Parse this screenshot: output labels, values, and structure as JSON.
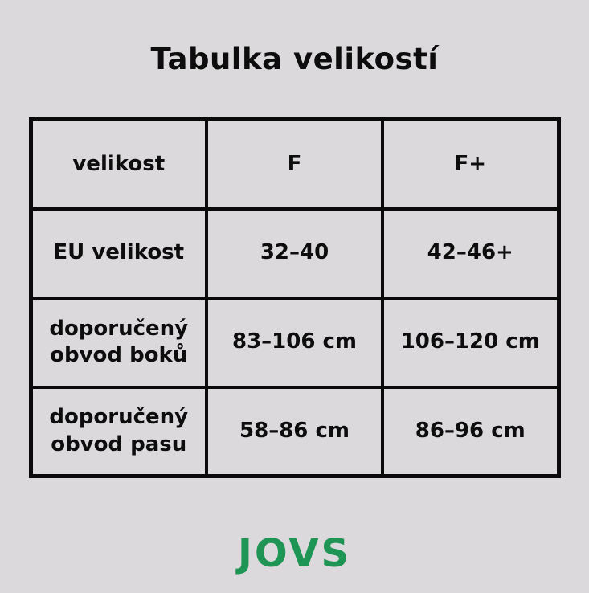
{
  "page": {
    "title": "Tabulka velikostí",
    "brand": "JOVS"
  },
  "theme": {
    "background_color": "#dbd9dc",
    "text_color": "#0d0d0d",
    "border_color": "#0a0a0a",
    "brand_green": "#1e9554"
  },
  "chart_data": {
    "type": "table",
    "title": "Tabulka velikostí",
    "columns": [
      "velikost",
      "F",
      "F+"
    ],
    "rows": [
      [
        "EU velikost",
        "32–40",
        "42–46+"
      ],
      [
        "doporučený obvod boků",
        "83–106 cm",
        "106–120 cm"
      ],
      [
        "doporučený obvod pasu",
        "58–86 cm",
        "86–96 cm"
      ]
    ],
    "layout_hints": {
      "columns_equal_width": true,
      "grid": true,
      "header_row": true,
      "text_align": "center"
    }
  }
}
